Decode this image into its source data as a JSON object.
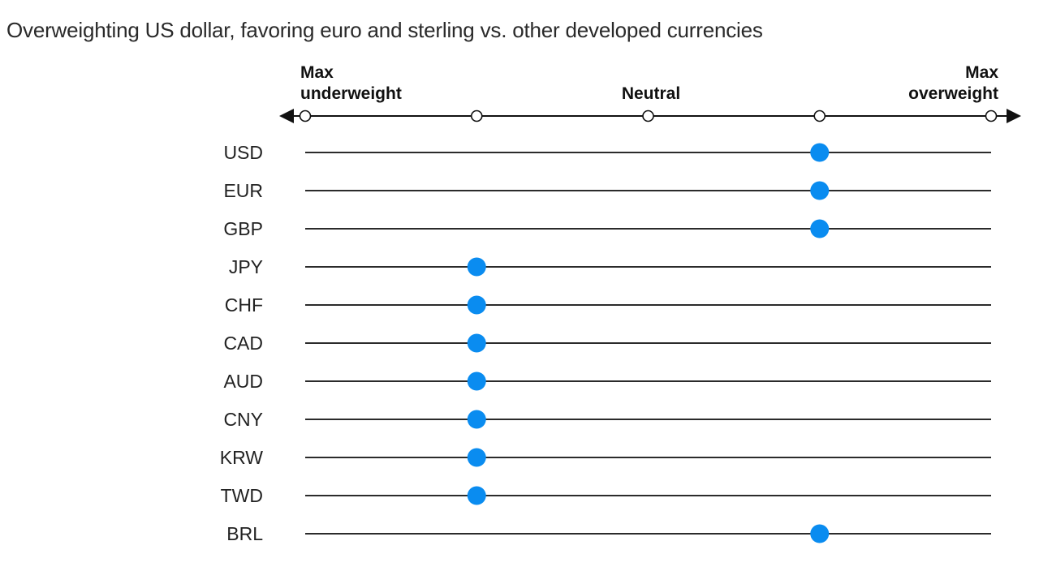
{
  "chart_data": {
    "type": "scatter",
    "title": "Overweighting US dollar, favoring euro and sterling vs. other developed currencies",
    "scale_labels": {
      "left": [
        "Max",
        "underweight"
      ],
      "center": "Neutral",
      "right": [
        "Max",
        "overweight"
      ]
    },
    "xlim": [
      -2,
      2
    ],
    "ticks": [
      -2,
      -1,
      0,
      1,
      2
    ],
    "categories": [
      "USD",
      "EUR",
      "GBP",
      "JPY",
      "CHF",
      "CAD",
      "AUD",
      "CNY",
      "KRW",
      "TWD",
      "BRL"
    ],
    "values": [
      1,
      1,
      1,
      -1,
      -1,
      -1,
      -1,
      -1,
      -1,
      -1,
      1
    ],
    "colors": {
      "dot": "#0a8cf0",
      "line": "#2b2b2b",
      "axis": "#111111"
    },
    "grid": false,
    "legend": "none"
  }
}
